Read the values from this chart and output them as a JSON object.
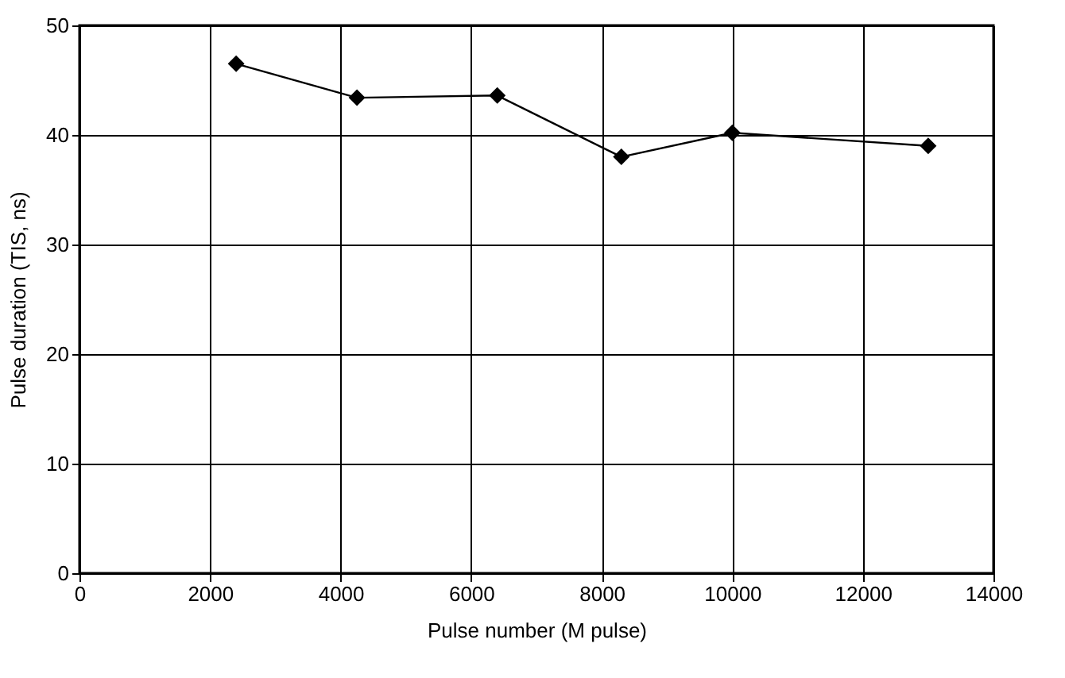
{
  "chart_data": {
    "type": "line",
    "xlabel": "Pulse number (M pulse)",
    "ylabel": "Pulse duration (TIS, ns)",
    "x": [
      2400,
      4250,
      6400,
      8300,
      10000,
      13000
    ],
    "series": [
      {
        "color": "#000000",
        "values": [
          46.5,
          43.4,
          43.6,
          38.0,
          40.2,
          39.0
        ]
      }
    ],
    "xlim": [
      0,
      14000
    ],
    "xticks": [
      0,
      2000,
      4000,
      6000,
      8000,
      10000,
      12000,
      14000
    ],
    "ylim": [
      0,
      50
    ],
    "yticks": [
      0,
      10,
      20,
      30,
      40,
      50
    ],
    "grid": true,
    "marker": "diamond",
    "line_style": "solid"
  }
}
